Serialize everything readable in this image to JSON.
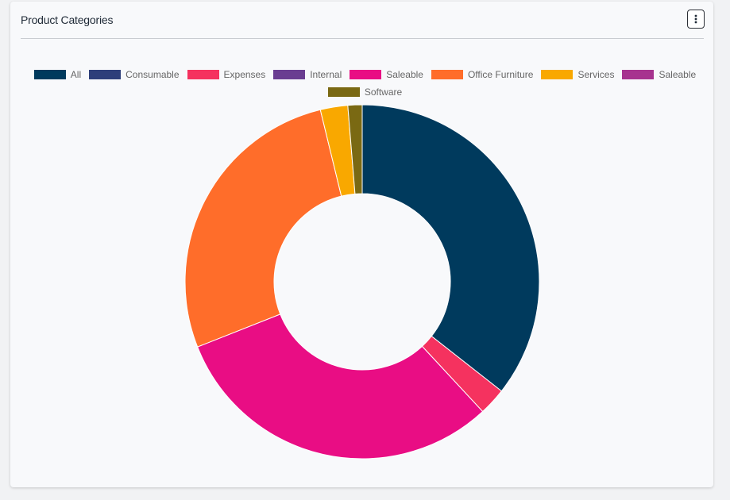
{
  "card": {
    "title": "Product Categories",
    "menu_icon": "vertical-ellipsis-icon"
  },
  "chart_data": {
    "type": "doughnut",
    "title": "Product Categories",
    "legend_position": "top",
    "series": [
      {
        "name": "All",
        "value": 35.6,
        "color": "#003a5d"
      },
      {
        "name": "Consumable",
        "value": 0,
        "color": "#2e3f7a"
      },
      {
        "name": "Expenses",
        "value": 2.5,
        "color": "#f5325f"
      },
      {
        "name": "Internal",
        "value": 0,
        "color": "#6a3d91"
      },
      {
        "name": "Saleable",
        "value": 30.9,
        "color": "#e90d84"
      },
      {
        "name": "Office Furniture",
        "value": 27.2,
        "color": "#ff6d2a"
      },
      {
        "name": "Services",
        "value": 2.5,
        "color": "#f9a800"
      },
      {
        "name": "Saleable",
        "value": 0,
        "color": "#a7338f"
      },
      {
        "name": "Software",
        "value": 1.3,
        "color": "#7a6913"
      }
    ]
  }
}
